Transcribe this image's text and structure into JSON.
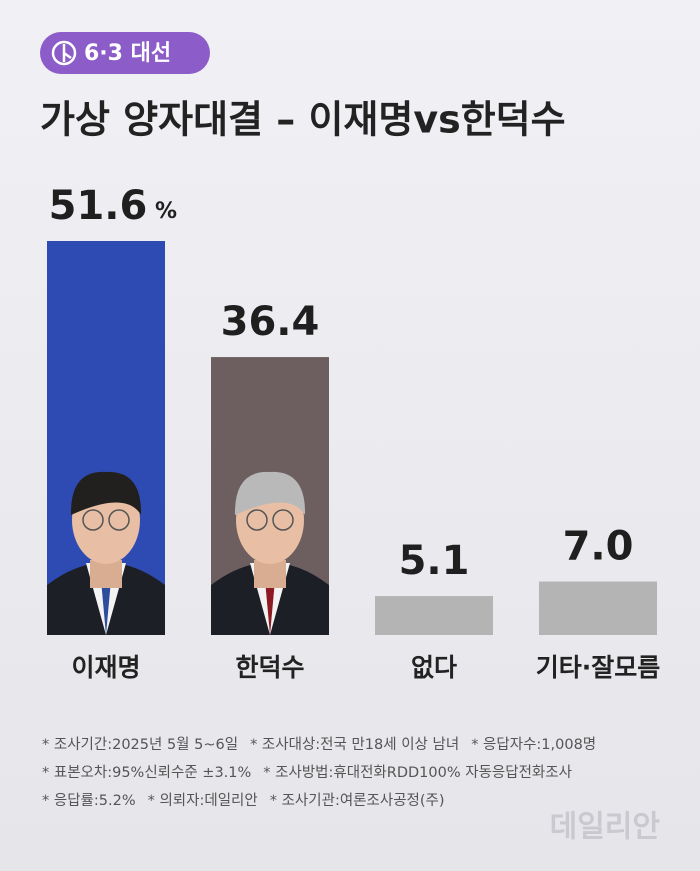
{
  "chart_data": {
    "type": "bar",
    "badge": "6·3 대선",
    "title": "가상 양자대결 – 이재명vs한덕수",
    "categories": [
      "이재명",
      "한덕수",
      "없다",
      "기타·잘모름"
    ],
    "values": [
      51.6,
      36.4,
      5.1,
      7.0
    ],
    "value_labels": [
      "51.6",
      "36.4",
      "5.1",
      "7.0"
    ],
    "unit": "%",
    "colors": [
      "#2e4bb3",
      "#6d5f60",
      "#b4b4b4",
      "#b4b4b4"
    ],
    "notes": [
      [
        "* 조사기간:2025년 5월 5~6일",
        "* 조사대상:전국 만18세 이상 남녀",
        "* 응답자수:1,008명"
      ],
      [
        "* 표본오차:95%신뢰수준 ±3.1%",
        "* 조사방법:휴대전화RDD100% 자동응답전화조사"
      ],
      [
        "* 응답률:5.2%",
        "* 의뢰자:데일리안",
        "* 조사기관:여론조사공정(주)"
      ]
    ],
    "watermark": "데일리안"
  }
}
